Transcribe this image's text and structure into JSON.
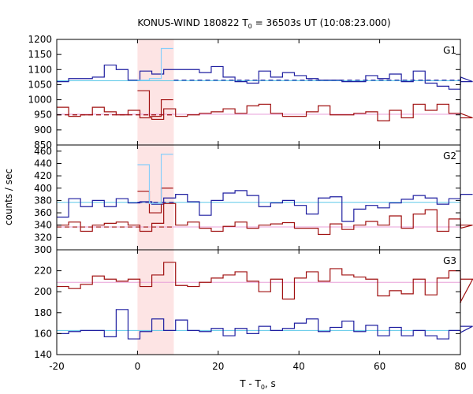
{
  "chart_data": {
    "type": "line",
    "title": "KONUS-WIND 180822 T",
    "title_sub": "0",
    "title_rest": " = 36503s UT (10:08:23.000)",
    "xlabel": "T - T",
    "xlabel_sub": "0",
    "xlabel_rest": ", s",
    "ylabel": "counts / sec",
    "xlim": [
      -20,
      80
    ],
    "x_ticks": [
      -20,
      0,
      20,
      40,
      60,
      80
    ],
    "highlight_interval": [
      0,
      9
    ],
    "highlight_color": "#fde4e4",
    "panels": [
      {
        "label": "G1",
        "ylim": [
          850,
          1200
        ],
        "y_ticks": [
          850,
          900,
          950,
          1000,
          1050,
          1100,
          1150,
          1200
        ],
        "bin_width": 2.944,
        "x_start": -20,
        "series": [
          {
            "color": "#1f1fa0",
            "values": [
              1060,
              1070,
              1070,
              1075,
              1115,
              1100,
              1065,
              1095,
              1085,
              1100,
              1100,
              1100,
              1090,
              1110,
              1075,
              1060,
              1055,
              1095,
              1075,
              1090,
              1080,
              1070,
              1065,
              1065,
              1060,
              1060,
              1080,
              1070,
              1085,
              1060,
              1095,
              1055,
              1045,
              1035,
              1075,
              1060
            ]
          },
          {
            "color": "#a01010",
            "values": [
              975,
              945,
              950,
              975,
              960,
              950,
              965,
              940,
              935,
              970,
              945,
              950,
              955,
              960,
              970,
              955,
              980,
              985,
              955,
              945,
              945,
              960,
              980,
              950,
              950,
              955,
              960,
              930,
              965,
              940,
              985,
              965,
              985,
              955,
              955,
              940
            ]
          }
        ],
        "peak_override": {
          "color": "#87cefa",
          "x_start": 0,
          "values": [
            1065,
            1070,
            1170
          ],
          "red_values": [
            1030,
            945,
            1000
          ]
        },
        "levels": [
          {
            "color": "#5bc8e8",
            "value": 1063
          },
          {
            "color": "#e8a0d8",
            "value": 952
          }
        ],
        "dashed_levels": [
          {
            "color": "#1f1fa0",
            "x": [
              9,
              80
            ],
            "value": 1065
          },
          {
            "color": "#a01010",
            "x": [
              -20,
              9
            ],
            "value": 950
          }
        ]
      },
      {
        "label": "G2",
        "ylim": [
          300,
          470
        ],
        "y_ticks": [
          300,
          320,
          340,
          360,
          380,
          400,
          420,
          440,
          460
        ],
        "bin_width": 2.944,
        "x_start": -20,
        "series": [
          {
            "color": "#1f1fa0",
            "values": [
              353,
              383,
              370,
              380,
              370,
              383,
              376,
              378,
              374,
              384,
              390,
              378,
              356,
              380,
              392,
              396,
              388,
              370,
              376,
              380,
              372,
              358,
              384,
              386,
              346,
              366,
              372,
              368,
              376,
              382,
              388,
              384,
              374,
              383,
              390,
              390
            ]
          },
          {
            "color": "#a01010",
            "values": [
              340,
              345,
              330,
              340,
              343,
              345,
              340,
              330,
              343,
              375,
              340,
              345,
              335,
              330,
              338,
              345,
              335,
              340,
              342,
              344,
              335,
              335,
              325,
              342,
              333,
              340,
              346,
              340,
              355,
              335,
              358,
              365,
              330,
              350,
              335,
              340
            ]
          }
        ],
        "peak_override": {
          "color": "#87cefa",
          "x_start": 0,
          "values": [
            438,
            375,
            455
          ],
          "red_values": [
            395,
            360,
            400
          ]
        },
        "levels": [
          {
            "color": "#5bc8e8",
            "value": 377
          },
          {
            "color": "#e8a0d8",
            "value": 337
          }
        ],
        "dashed_levels": [
          {
            "color": "#1f1fa0",
            "x": [
              0,
              9
            ],
            "value": 377
          },
          {
            "color": "#a01010",
            "x": [
              -20,
              9
            ],
            "value": 337
          }
        ]
      },
      {
        "label": "G3",
        "ylim": [
          140,
          240
        ],
        "y_ticks": [
          140,
          160,
          180,
          200,
          220
        ],
        "bin_width": 2.944,
        "x_start": -20,
        "series": [
          {
            "color": "#1f1fa0",
            "values": [
              160,
              162,
              163,
              163,
              157,
              183,
              155,
              162,
              174,
              163,
              173,
              163,
              162,
              165,
              158,
              165,
              160,
              167,
              163,
              165,
              170,
              174,
              162,
              166,
              172,
              162,
              168,
              158,
              166,
              158,
              163,
              158,
              155,
              163,
              161,
              167
            ]
          },
          {
            "color": "#a01010",
            "values": [
              205,
              203,
              207,
              215,
              212,
              210,
              212,
              205,
              216,
              228,
              206,
              205,
              209,
              213,
              216,
              219,
              210,
              200,
              212,
              193,
              213,
              219,
              210,
              222,
              216,
              214,
              212,
              196,
              201,
              198,
              212,
              197,
              213,
              220,
              190,
              212
            ]
          }
        ],
        "levels": [
          {
            "color": "#5bc8e8",
            "value": 163
          },
          {
            "color": "#e8a0d8",
            "value": 209
          }
        ],
        "dashed_levels": []
      }
    ]
  }
}
